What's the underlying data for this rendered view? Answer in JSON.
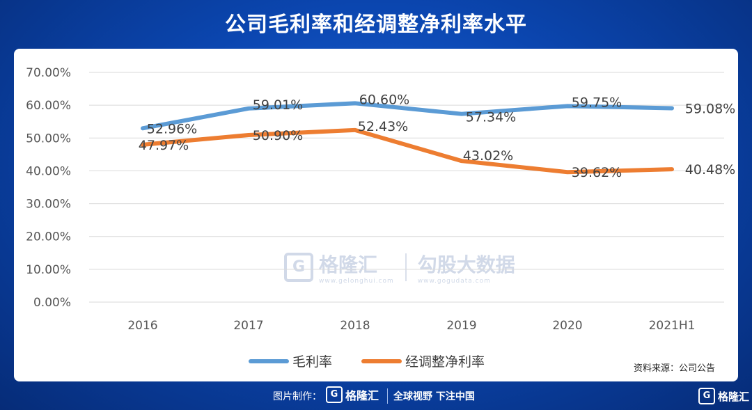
{
  "title": "公司毛利率和经调整净利率水平",
  "chart_data": {
    "type": "line",
    "title": "公司毛利率和经调整净利率水平",
    "categories": [
      "2016",
      "2017",
      "2018",
      "2019",
      "2020",
      "2021H1"
    ],
    "series": [
      {
        "name": "毛利率",
        "color": "#5b9bd5",
        "values": [
          52.96,
          59.01,
          60.6,
          57.34,
          59.75,
          59.08
        ],
        "labels": [
          "52.96%",
          "59.01%",
          "60.60%",
          "57.34%",
          "59.75%",
          "59.08%"
        ]
      },
      {
        "name": "经调整净利率",
        "color": "#ed7d31",
        "values": [
          47.97,
          50.9,
          52.43,
          43.02,
          39.62,
          40.48
        ],
        "labels": [
          "47.97%",
          "50.90%",
          "52.43%",
          "43.02%",
          "39.62%",
          "40.48%"
        ]
      }
    ],
    "ylim": [
      0,
      70
    ],
    "yticks": [
      0,
      10,
      20,
      30,
      40,
      50,
      60,
      70
    ],
    "ytick_labels": [
      "0.00%",
      "10.00%",
      "20.00%",
      "30.00%",
      "40.00%",
      "50.00%",
      "60.00%",
      "70.00%"
    ],
    "grid": true,
    "legend": "bottom-center"
  },
  "source": "资料来源：公司公告",
  "watermark": {
    "brand": "格隆汇",
    "brand_url": "www.gelonghui.com",
    "data_brand": "勾股大数据",
    "data_url": "www.gogudata.com"
  },
  "footer": {
    "made_by": "图片制作：",
    "brand": "格隆汇",
    "slogan": "全球视野 下注中国",
    "corner_brand": "格隆汇",
    "logo_letter": "G"
  }
}
